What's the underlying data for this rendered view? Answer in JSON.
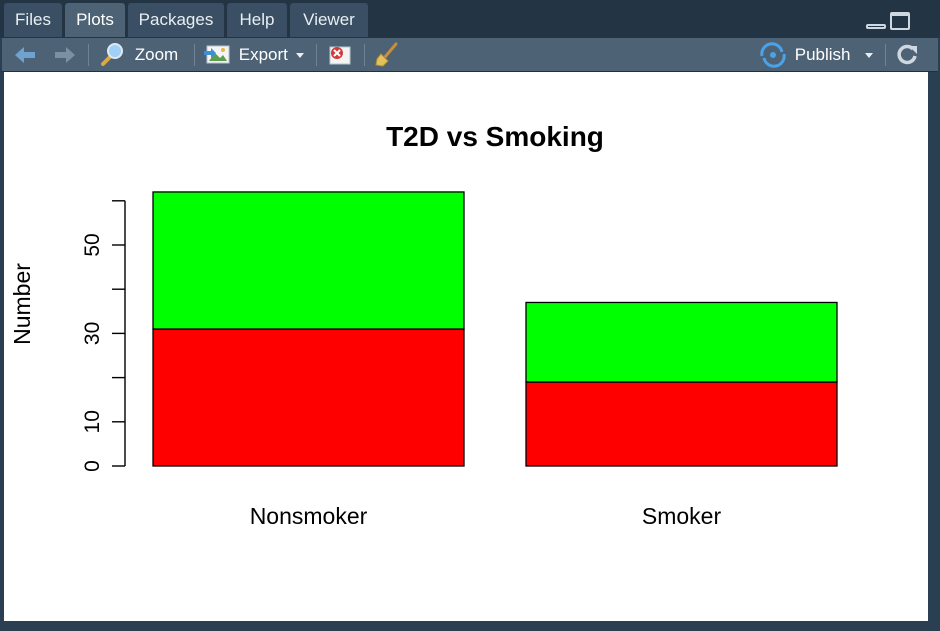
{
  "tabs": [
    {
      "label": "Files",
      "active": false
    },
    {
      "label": "Plots",
      "active": true
    },
    {
      "label": "Packages",
      "active": false
    },
    {
      "label": "Help",
      "active": false
    },
    {
      "label": "Viewer",
      "active": false
    }
  ],
  "toolbar": {
    "zoom_label": "Zoom",
    "export_label": "Export",
    "publish_label": "Publish"
  },
  "icons": {
    "back": "arrow-left-icon",
    "forward": "arrow-right-icon",
    "zoom": "magnifier-icon",
    "export": "image-export-icon",
    "remove": "remove-plot-icon",
    "clear": "broom-icon",
    "publish": "publish-icon",
    "refresh": "refresh-icon"
  },
  "colors": {
    "accent": "#4d6275",
    "bar_bottom": "#ff0000",
    "bar_top": "#00ff00"
  },
  "chart_data": {
    "type": "bar",
    "stacked": true,
    "title": "T2D vs Smoking",
    "xlabel": "",
    "ylabel": "Number",
    "categories": [
      "Nonsmoker",
      "Smoker"
    ],
    "series": [
      {
        "color": "#ff0000",
        "values": [
          31,
          19
        ]
      },
      {
        "color": "#00ff00",
        "values": [
          31,
          18
        ]
      }
    ],
    "yticks": [
      0,
      10,
      30,
      50
    ],
    "yticks_minor": [
      20,
      40,
      60
    ],
    "ylim": [
      0,
      62
    ],
    "grid": false,
    "legend": "none"
  }
}
